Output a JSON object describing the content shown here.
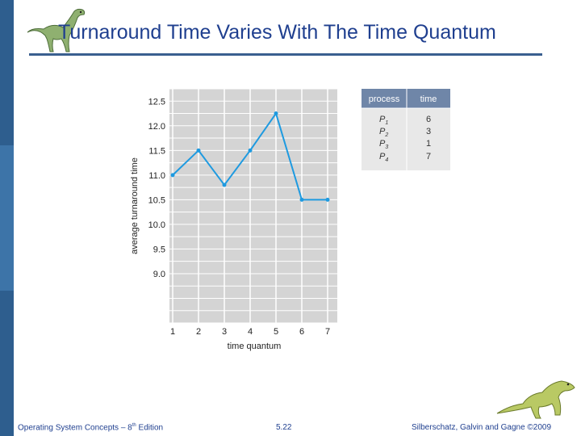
{
  "slide": {
    "title": "Turnaround Time Varies With The Time Quantum",
    "accent_color": "#1f3f8f",
    "sidebar_color": "#2f5f8f"
  },
  "footer": {
    "left_text": "Operating System Concepts – 8",
    "left_sup": "th",
    "left_suffix": " Edition",
    "center_text": "5.22",
    "right_text": "Silberschatz, Galvin and Gagne ©2009"
  },
  "decorations": [
    "dinosaur-icon-top",
    "dinosaur-icon-bottom"
  ],
  "chart_data": {
    "type": "line",
    "x": [
      1,
      2,
      3,
      4,
      5,
      6,
      7
    ],
    "values": [
      11.0,
      11.5,
      10.8,
      11.5,
      12.25,
      10.5,
      10.5
    ],
    "xlabel": "time quantum",
    "ylabel": "average turnaround time",
    "xticks": [
      "1",
      "2",
      "3",
      "4",
      "5",
      "6",
      "7"
    ],
    "yticks": [
      "9.0",
      "9.5",
      "10.0",
      "10.5",
      "11.0",
      "11.5",
      "12.0",
      "12.5"
    ],
    "xlim": [
      1,
      7
    ],
    "ylim": [
      8.0,
      12.75
    ],
    "grid": true,
    "line_color": "#1e9ae0",
    "plot_bg": "#d4d4d4",
    "table": {
      "headers": [
        "process",
        "time"
      ],
      "rows": [
        {
          "process": "P",
          "sub": "1",
          "time": "6"
        },
        {
          "process": "P",
          "sub": "2",
          "time": "3"
        },
        {
          "process": "P",
          "sub": "3",
          "time": "1"
        },
        {
          "process": "P",
          "sub": "4",
          "time": "7"
        }
      ]
    }
  }
}
